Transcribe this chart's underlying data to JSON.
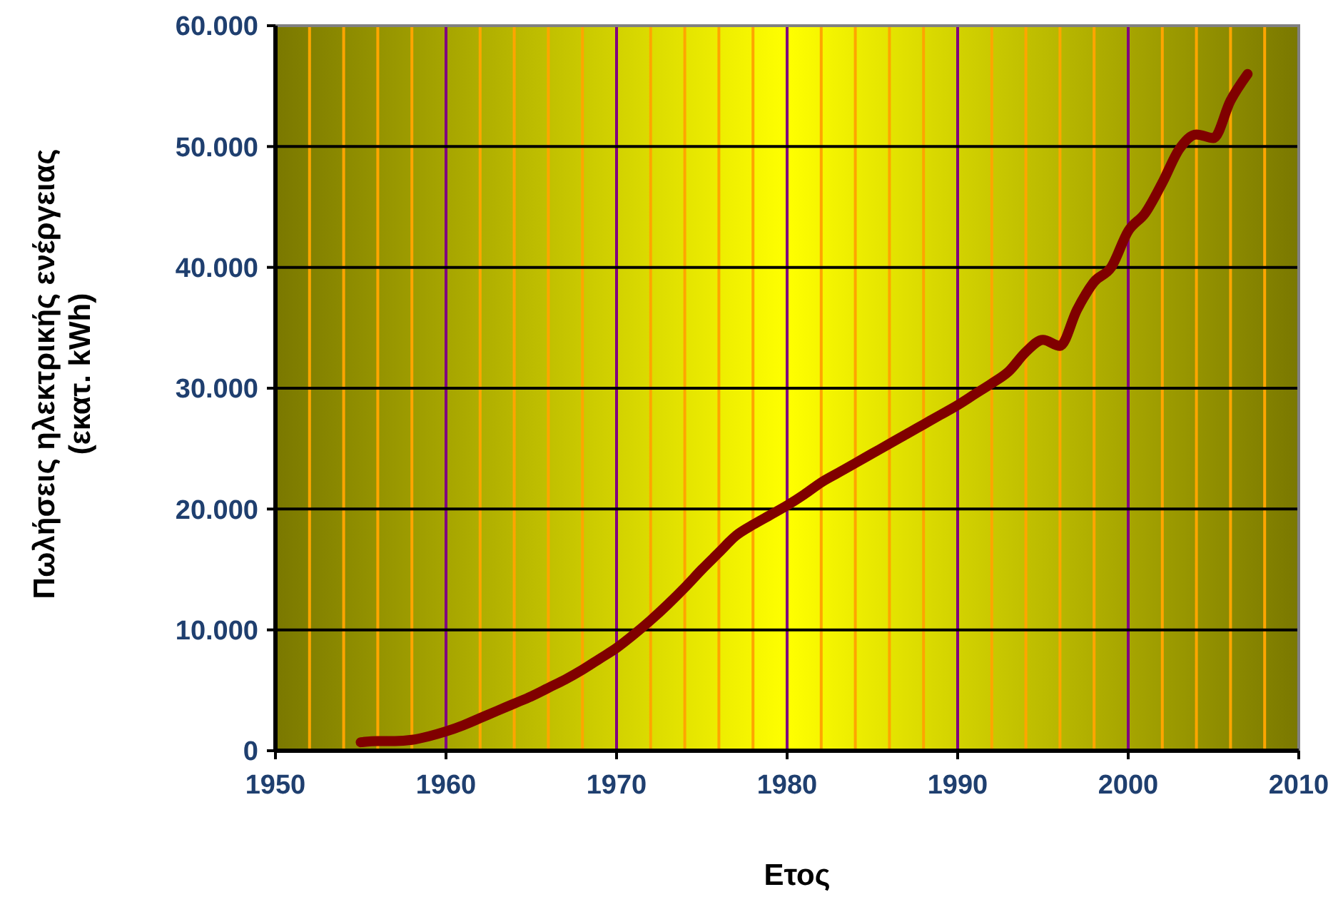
{
  "chart_data": {
    "type": "line",
    "xlabel": "Ετος",
    "ylabel": "Πωλήσεις ηλεκτρικής ενέργειας\n(εκατ. kWh)",
    "x": [
      1955,
      1956,
      1957,
      1958,
      1959,
      1960,
      1961,
      1962,
      1963,
      1964,
      1965,
      1966,
      1967,
      1968,
      1969,
      1970,
      1971,
      1972,
      1973,
      1974,
      1975,
      1976,
      1977,
      1978,
      1979,
      1980,
      1981,
      1982,
      1983,
      1984,
      1985,
      1986,
      1987,
      1988,
      1989,
      1990,
      1991,
      1992,
      1993,
      1994,
      1995,
      1996,
      1997,
      1998,
      1999,
      2000,
      2001,
      2002,
      2003,
      2004,
      2005,
      2006,
      2007
    ],
    "series": [
      {
        "color": "#800000",
        "values": [
          700,
          800,
          800,
          900,
          1200,
          1600,
          2100,
          2700,
          3300,
          3900,
          4500,
          5200,
          5900,
          6700,
          7600,
          8500,
          9600,
          10800,
          12100,
          13500,
          15000,
          16400,
          17800,
          18700,
          19500,
          20300,
          21200,
          22200,
          23000,
          23800,
          24600,
          25400,
          26200,
          27000,
          27800,
          28600,
          29500,
          30400,
          31400,
          33000,
          34000,
          33500,
          36500,
          38800,
          40000,
          43000,
          44500,
          47000,
          49800,
          51000,
          50700,
          53800,
          56000
        ]
      }
    ],
    "xlim": [
      1950,
      2010
    ],
    "xticks": [
      1950,
      {
        "value": 1952,
        "label": null
      },
      {
        "value": 1954,
        "label": null
      },
      {
        "value": 1956,
        "label": null
      },
      {
        "value": 1958,
        "label": null
      },
      1960,
      {
        "value": 1962,
        "label": null
      },
      {
        "value": 1964,
        "label": null
      },
      {
        "value": 1966,
        "label": null
      },
      {
        "value": 1968,
        "label": null
      },
      1970,
      {
        "value": 1972,
        "label": null
      },
      {
        "value": 1974,
        "label": null
      },
      {
        "value": 1976,
        "label": null
      },
      {
        "value": 1978,
        "label": null
      },
      1980,
      {
        "value": 1982,
        "label": null
      },
      {
        "value": 1984,
        "label": null
      },
      {
        "value": 1986,
        "label": null
      },
      {
        "value": 1988,
        "label": null
      },
      1990,
      {
        "value": 1992,
        "label": null
      },
      {
        "value": 1994,
        "label": null
      },
      {
        "value": 1996,
        "label": null
      },
      {
        "value": 1998,
        "label": null
      },
      2000,
      {
        "value": 2002,
        "label": null
      },
      {
        "value": 2004,
        "label": null
      },
      {
        "value": 2006,
        "label": null
      },
      {
        "value": 2008,
        "label": null
      },
      2010
    ],
    "ylim": [
      0,
      60000
    ],
    "yticks": [
      0,
      {
        "value": 10000,
        "label": "10.000"
      },
      {
        "value": 20000,
        "label": "20.000"
      },
      {
        "value": 30000,
        "label": "30.000"
      },
      {
        "value": 40000,
        "label": "40.000"
      },
      {
        "value": 50000,
        "label": "50.000"
      },
      {
        "value": 60000,
        "label": "60.000"
      }
    ],
    "grid": true,
    "line_style": "solid"
  }
}
